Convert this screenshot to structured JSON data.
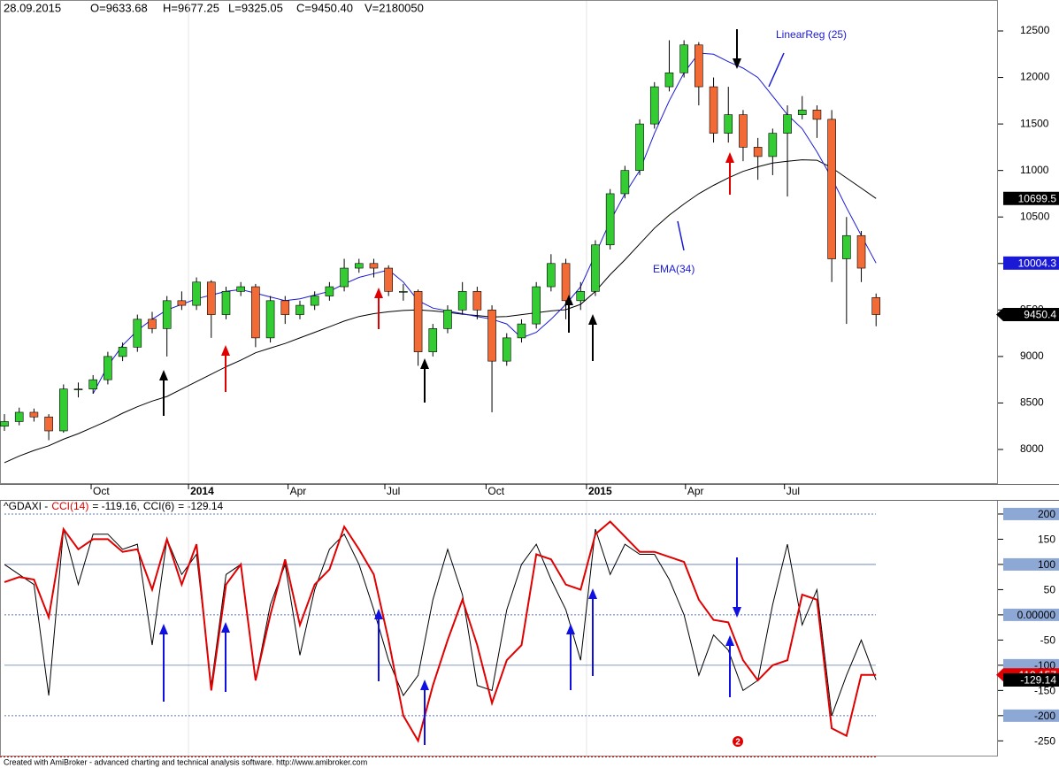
{
  "header": {
    "date": "28.09.2015",
    "open": "O=9633.68",
    "high": "H=9677.25",
    "low": "L=9325.05",
    "close": "C=9450.40",
    "volume": "V=2180050"
  },
  "chart_data": [
    {
      "type": "candlestick",
      "up_color": "#33cc33",
      "down_color": "#f26a35",
      "open": [
        8250,
        8300,
        8400,
        8350,
        8200,
        8650,
        8650,
        8750,
        9000,
        9100,
        9400,
        9300,
        9600,
        9550,
        9800,
        9450,
        9700,
        9750,
        9200,
        9600,
        9450,
        9550,
        9650,
        9750,
        9950,
        10000,
        9950,
        9700,
        9700,
        9050,
        9300,
        9500,
        9700,
        9500,
        8950,
        9200,
        9350,
        9750,
        10000,
        9600,
        9700,
        10200,
        10750,
        11000,
        11500,
        11900,
        12050,
        12350,
        11900,
        11400,
        11600,
        11250,
        11150,
        11400,
        11600,
        11650,
        11550,
        10050,
        10300,
        9633.68
      ],
      "high": [
        8380,
        8450,
        8440,
        8380,
        8700,
        8720,
        8800,
        9050,
        9150,
        9450,
        9480,
        9650,
        9700,
        9850,
        9820,
        9750,
        9800,
        9780,
        9650,
        9650,
        9600,
        9700,
        9800,
        10050,
        10050,
        10050,
        9980,
        9780,
        9720,
        9350,
        9550,
        9800,
        9750,
        9550,
        9250,
        9400,
        9800,
        10100,
        10050,
        9800,
        10250,
        10800,
        11050,
        11550,
        11950,
        12400,
        12400,
        12380,
        12000,
        11900,
        11650,
        11350,
        11450,
        11700,
        11800,
        11700,
        11650,
        10500,
        10350,
        9677.25
      ],
      "low": [
        8200,
        8260,
        8300,
        8100,
        8180,
        8560,
        8600,
        8700,
        8950,
        9050,
        9250,
        9000,
        9500,
        9500,
        9200,
        9400,
        9650,
        9100,
        9150,
        9350,
        9400,
        9500,
        9600,
        9700,
        9900,
        9850,
        9650,
        9600,
        8900,
        9000,
        9250,
        9450,
        9400,
        8400,
        8900,
        9150,
        9300,
        9700,
        9400,
        9500,
        9650,
        10150,
        10700,
        10950,
        11450,
        11850,
        12000,
        11700,
        11300,
        11300,
        11100,
        10900,
        10950,
        10720,
        11550,
        11350,
        9800,
        9350,
        9800,
        9325.05
      ],
      "close": [
        8300,
        8400,
        8350,
        8200,
        8650,
        8650,
        8750,
        9000,
        9100,
        9400,
        9300,
        9600,
        9550,
        9800,
        9450,
        9700,
        9750,
        9200,
        9600,
        9450,
        9550,
        9650,
        9750,
        9950,
        10000,
        9950,
        9700,
        9700,
        9050,
        9300,
        9500,
        9700,
        9500,
        8950,
        9200,
        9350,
        9750,
        10000,
        9600,
        9700,
        10200,
        10750,
        11000,
        11500,
        11900,
        12050,
        12350,
        11900,
        11400,
        11600,
        11250,
        11150,
        11400,
        11600,
        11650,
        11550,
        10050,
        10300,
        9950,
        9450.4
      ],
      "series": [
        {
          "name": "EMA(34)",
          "color": "#000000",
          "values": [
            7858,
            7930,
            7990,
            8040,
            8110,
            8170,
            8240,
            8310,
            8390,
            8460,
            8520,
            8570,
            8650,
            8730,
            8810,
            8890,
            8960,
            9040,
            9090,
            9140,
            9200,
            9260,
            9320,
            9380,
            9430,
            9460,
            9480,
            9495,
            9500,
            9490,
            9475,
            9455,
            9440,
            9425,
            9430,
            9450,
            9470,
            9490,
            9503,
            9560,
            9700,
            9880,
            10040,
            10210,
            10380,
            10520,
            10640,
            10750,
            10840,
            10920,
            10990,
            11040,
            11080,
            11100,
            11115,
            11110,
            11030,
            10920,
            10810,
            10699.5
          ]
        },
        {
          "name": "LinearReg (25)",
          "color": "#1a1ad6",
          "values": [
            null,
            null,
            null,
            null,
            null,
            null,
            8600,
            8900,
            9120,
            9280,
            9400,
            9500,
            9560,
            9620,
            9660,
            9700,
            9720,
            9680,
            9640,
            9600,
            9620,
            9660,
            9700,
            9780,
            9850,
            9890,
            9930,
            9800,
            9600,
            9520,
            9490,
            9460,
            9430,
            9400,
            9350,
            9200,
            9260,
            9400,
            9560,
            9750,
            10100,
            10455,
            10750,
            11000,
            11400,
            11750,
            12050,
            12262,
            12250,
            12170,
            12100,
            12000,
            11800,
            11600,
            11450,
            11200,
            10920,
            10600,
            10300,
            10004.3
          ]
        }
      ],
      "ylim": [
        7629,
        12833
      ],
      "yticks": [
        8000,
        8500,
        9000,
        9500,
        10000,
        10500,
        11000,
        11500,
        12000,
        12500
      ],
      "xlim": [
        -0.3,
        67.25
      ],
      "xticks": [
        {
          "value": 5.87,
          "label": "Oct"
        },
        {
          "value": 12.46,
          "label": "2014"
        },
        {
          "value": 19.2,
          "label": "Apr"
        },
        {
          "value": 25.75,
          "label": "Jul"
        },
        {
          "value": 32.6,
          "label": "Oct"
        },
        {
          "value": 39.4,
          "label": "2015"
        },
        {
          "value": 46.1,
          "label": "Apr"
        },
        {
          "value": 52.8,
          "label": "Jul"
        }
      ]
    },
    {
      "type": "line",
      "symbol": "^GDAXI -",
      "series_value_labels": [
        "= -119.16,",
        "= -129.14"
      ],
      "series": [
        {
          "name": "CCI(14)",
          "color": "#e00000",
          "values": [
            65,
            75,
            70,
            -5,
            170,
            130,
            150,
            150,
            125,
            130,
            50,
            150,
            60,
            140,
            -150,
            60,
            100,
            -130,
            0,
            110,
            -20,
            60,
            90,
            175,
            130,
            80,
            -50,
            -200,
            -250,
            -140,
            -50,
            30,
            -60,
            -175,
            -90,
            -60,
            120,
            110,
            60,
            50,
            160,
            185,
            155,
            125,
            125,
            115,
            105,
            30,
            -10,
            -15,
            -90,
            -130,
            -100,
            -90,
            40,
            30,
            -225,
            -240,
            -119,
            -119.157
          ]
        },
        {
          "name": "CCI(6)",
          "color": "#000000",
          "values": [
            100,
            80,
            60,
            -160,
            170,
            60,
            160,
            160,
            130,
            140,
            -60,
            150,
            80,
            120,
            -140,
            80,
            100,
            -130,
            20,
            100,
            -80,
            50,
            130,
            160,
            100,
            10,
            -90,
            -160,
            -120,
            30,
            130,
            40,
            -140,
            -150,
            10,
            100,
            140,
            70,
            10,
            -90,
            170,
            80,
            140,
            120,
            120,
            70,
            0,
            -120,
            -40,
            -70,
            -150,
            -130,
            20,
            140,
            -20,
            50,
            -200,
            -120,
            -50,
            -129.14
          ]
        }
      ],
      "ylim": [
        -281,
        228
      ],
      "yticks": [
        200,
        150,
        100,
        50,
        {
          "value": 0,
          "label": "0.00000"
        },
        -50,
        -100,
        -150,
        -200,
        -250
      ],
      "solid_levels": [
        100,
        -100
      ],
      "dotted_levels": [
        200,
        0,
        -200
      ],
      "xlim": [
        -0.3,
        67.25
      ]
    }
  ],
  "marker": "2",
  "footer": "Created with AmiBroker - advanced charting and technical analysis software. http://www.amibroker.com"
}
